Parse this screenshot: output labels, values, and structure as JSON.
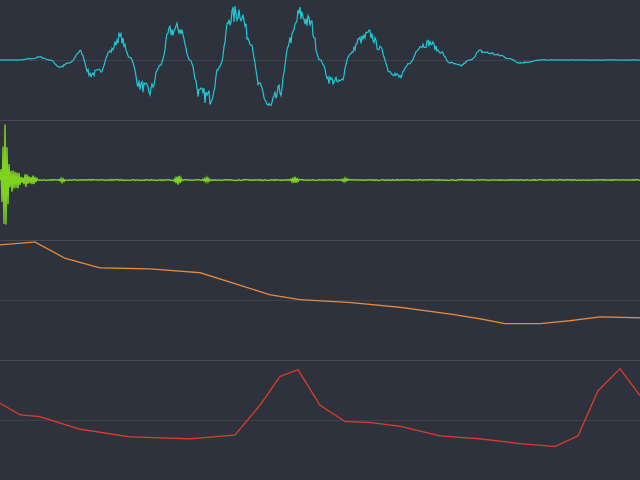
{
  "colors": {
    "background": "#2e323d",
    "divider": "#454a55",
    "centerline": "#3c414c"
  },
  "chart_data": [
    {
      "type": "line",
      "name_hint": "waveform",
      "color": "#22c7d4",
      "ylim": [
        -1,
        1
      ],
      "x": [
        0,
        10,
        20,
        30,
        40,
        50,
        60,
        70,
        80,
        90,
        100,
        110,
        120,
        130,
        140,
        150,
        160,
        170,
        180,
        190,
        200,
        210,
        220,
        230,
        240,
        250,
        260,
        270,
        280,
        290,
        300,
        310,
        320,
        330,
        340,
        350,
        360,
        370,
        380,
        390,
        400,
        410,
        420,
        430,
        440,
        450,
        460,
        470,
        480,
        490,
        500,
        510,
        520,
        530,
        540,
        550,
        560,
        570,
        580,
        590,
        600,
        610,
        620,
        630,
        640
      ],
      "values": [
        0.0,
        0.0,
        0.0,
        0.02,
        0.05,
        0.0,
        -0.12,
        -0.05,
        0.15,
        -0.25,
        -0.2,
        0.15,
        0.4,
        0.05,
        -0.45,
        -0.55,
        -0.1,
        0.5,
        0.55,
        0.0,
        -0.6,
        -0.65,
        -0.1,
        0.75,
        0.85,
        0.35,
        -0.5,
        -0.85,
        -0.55,
        0.35,
        0.8,
        0.65,
        0.0,
        -0.35,
        -0.4,
        0.1,
        0.35,
        0.45,
        0.2,
        -0.2,
        -0.3,
        -0.05,
        0.25,
        0.3,
        0.15,
        -0.05,
        -0.1,
        0.0,
        0.15,
        0.12,
        0.08,
        0.02,
        -0.05,
        -0.03,
        0.0,
        0.0,
        0.0,
        0.0,
        0.0,
        0.0,
        0.0,
        0.0,
        0.0,
        0.0,
        0.0
      ]
    },
    {
      "type": "line",
      "name_hint": "impulse",
      "color": "#7ed321",
      "ylim": [
        -1,
        1
      ],
      "spikes": [
        {
          "x": 5,
          "amplitude": 0.95
        },
        {
          "x": 12,
          "amplitude": 0.2
        },
        {
          "x": 18,
          "amplitude": 0.15
        },
        {
          "x": 26,
          "amplitude": 0.12
        },
        {
          "x": 33,
          "amplitude": 0.08
        },
        {
          "x": 62,
          "amplitude": 0.03
        },
        {
          "x": 178,
          "amplitude": 0.08
        },
        {
          "x": 207,
          "amplitude": 0.04
        },
        {
          "x": 295,
          "amplitude": 0.06
        },
        {
          "x": 345,
          "amplitude": 0.03
        }
      ]
    },
    {
      "type": "line",
      "name_hint": "orange-curve",
      "color": "#e88a3c",
      "ylim": [
        0,
        1
      ],
      "x": [
        0,
        35,
        65,
        100,
        150,
        200,
        240,
        270,
        300,
        350,
        400,
        450,
        480,
        505,
        540,
        570,
        600,
        640
      ],
      "values": [
        0.97,
        1.0,
        0.83,
        0.73,
        0.72,
        0.68,
        0.55,
        0.45,
        0.4,
        0.37,
        0.32,
        0.25,
        0.2,
        0.15,
        0.15,
        0.18,
        0.22,
        0.21
      ]
    },
    {
      "type": "line",
      "name_hint": "red-curve",
      "color": "#e03a2a",
      "ylim": [
        0,
        1
      ],
      "x": [
        0,
        20,
        40,
        80,
        130,
        190,
        235,
        260,
        280,
        298,
        320,
        345,
        370,
        400,
        440,
        480,
        520,
        555,
        578,
        598,
        620,
        640
      ],
      "values": [
        0.57,
        0.45,
        0.43,
        0.3,
        0.22,
        0.2,
        0.24,
        0.55,
        0.85,
        0.92,
        0.55,
        0.38,
        0.37,
        0.33,
        0.23,
        0.2,
        0.15,
        0.12,
        0.23,
        0.7,
        0.93,
        0.65
      ]
    }
  ]
}
